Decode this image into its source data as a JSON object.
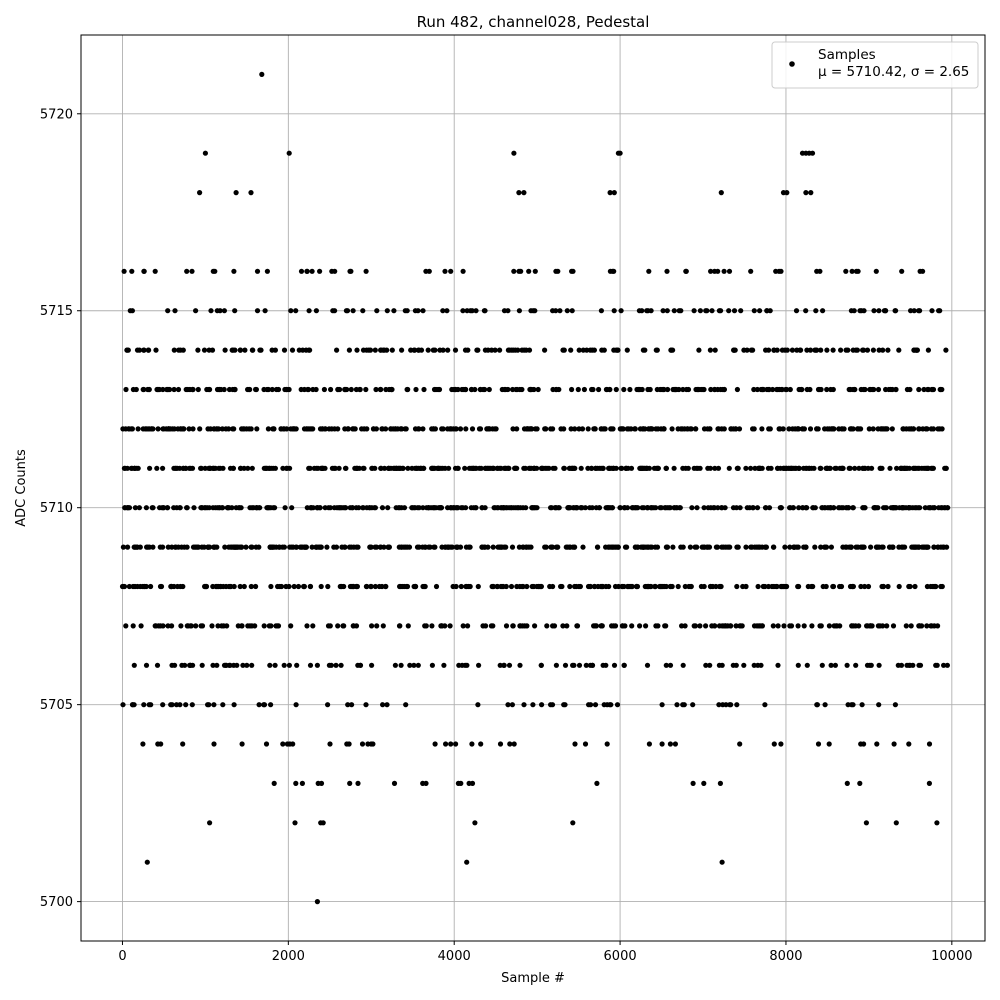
{
  "chart_data": {
    "type": "scatter",
    "title": "Run 482, channel028, Pedestal",
    "xlabel": "Sample #",
    "ylabel": "ADC Counts",
    "xlim": [
      -500,
      10400
    ],
    "ylim": [
      5699,
      5722
    ],
    "xticks": [
      0,
      2000,
      4000,
      6000,
      8000,
      10000
    ],
    "yticks": [
      5700,
      5705,
      5710,
      5715,
      5720
    ],
    "grid": true,
    "legend_position": "top-right",
    "marker_color": "#000000",
    "sample_count": 10000,
    "x_range": [
      0,
      9950
    ],
    "mean": 5710.42,
    "sigma": 2.65,
    "series": [
      {
        "name": "Samples",
        "stats_label": "μ = 5710.42, σ = 2.65",
        "dense_levels": [
          5706,
          5707,
          5708,
          5709,
          5710,
          5711,
          5712,
          5713,
          5714,
          5715,
          5716
        ],
        "outliers": [
          {
            "x": 300,
            "y": 5701
          },
          {
            "x": 4150,
            "y": 5701
          },
          {
            "x": 7230,
            "y": 5701
          },
          {
            "x": 2350,
            "y": 5700
          },
          {
            "x": 1680,
            "y": 5721
          },
          {
            "x": 1000,
            "y": 5719
          },
          {
            "x": 2010,
            "y": 5719
          },
          {
            "x": 4720,
            "y": 5719
          },
          {
            "x": 5980,
            "y": 5719
          },
          {
            "x": 6000,
            "y": 5719
          },
          {
            "x": 8200,
            "y": 5719
          },
          {
            "x": 8240,
            "y": 5719
          },
          {
            "x": 8280,
            "y": 5719
          },
          {
            "x": 8320,
            "y": 5719
          },
          {
            "x": 930,
            "y": 5718
          },
          {
            "x": 1370,
            "y": 5718
          },
          {
            "x": 1550,
            "y": 5718
          },
          {
            "x": 4780,
            "y": 5718
          },
          {
            "x": 4840,
            "y": 5718
          },
          {
            "x": 5880,
            "y": 5718
          },
          {
            "x": 5930,
            "y": 5718
          },
          {
            "x": 7220,
            "y": 5718
          },
          {
            "x": 7970,
            "y": 5718
          },
          {
            "x": 8010,
            "y": 5718
          },
          {
            "x": 8240,
            "y": 5718
          },
          {
            "x": 8300,
            "y": 5718
          },
          {
            "x": 1050,
            "y": 5702
          },
          {
            "x": 2080,
            "y": 5702
          },
          {
            "x": 2390,
            "y": 5702
          },
          {
            "x": 2420,
            "y": 5702
          },
          {
            "x": 4250,
            "y": 5702
          },
          {
            "x": 5430,
            "y": 5702
          },
          {
            "x": 8970,
            "y": 5702
          },
          {
            "x": 9330,
            "y": 5702
          },
          {
            "x": 9820,
            "y": 5702
          },
          {
            "x": 1830,
            "y": 5703
          },
          {
            "x": 2090,
            "y": 5703
          },
          {
            "x": 2170,
            "y": 5703
          },
          {
            "x": 2360,
            "y": 5703
          },
          {
            "x": 2400,
            "y": 5703
          },
          {
            "x": 2740,
            "y": 5703
          },
          {
            "x": 2840,
            "y": 5703
          },
          {
            "x": 3280,
            "y": 5703
          },
          {
            "x": 3620,
            "y": 5703
          },
          {
            "x": 3660,
            "y": 5703
          },
          {
            "x": 4050,
            "y": 5703
          },
          {
            "x": 4080,
            "y": 5703
          },
          {
            "x": 4180,
            "y": 5703
          },
          {
            "x": 4220,
            "y": 5703
          },
          {
            "x": 5720,
            "y": 5703
          },
          {
            "x": 6880,
            "y": 5703
          },
          {
            "x": 7010,
            "y": 5703
          },
          {
            "x": 7210,
            "y": 5703
          },
          {
            "x": 8740,
            "y": 5703
          },
          {
            "x": 8890,
            "y": 5703
          },
          {
            "x": 9730,
            "y": 5703
          }
        ]
      }
    ]
  }
}
